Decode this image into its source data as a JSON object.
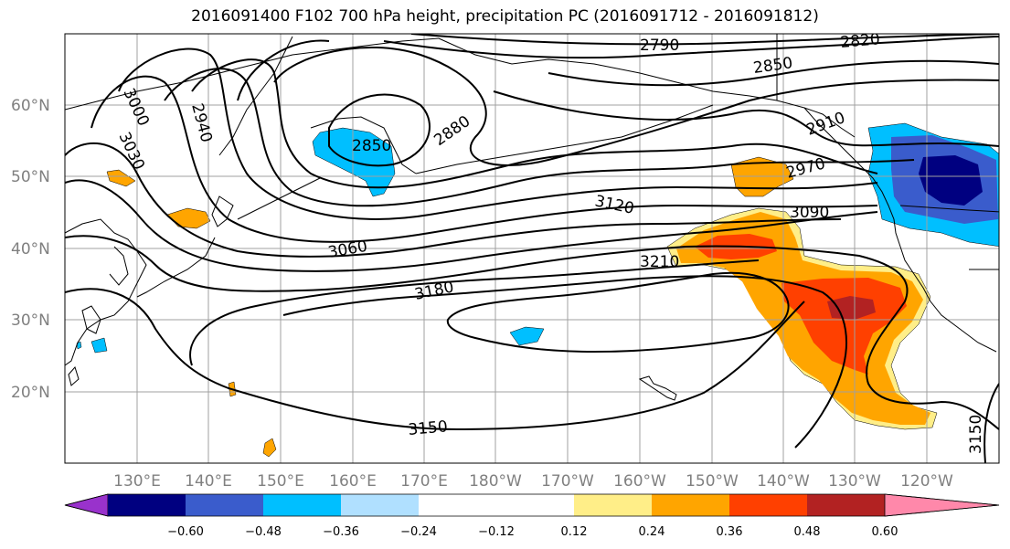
{
  "title": "2016091400 F102 700 hPa height, precipitation PC (2016091712 - 2016091812)",
  "longitude_labels": [
    "130°E",
    "140°E",
    "150°E",
    "160°E",
    "170°E",
    "180°W",
    "170°W",
    "160°W",
    "150°W",
    "140°W",
    "130°W",
    "120°W"
  ],
  "latitude_labels": [
    "20°N",
    "30°N",
    "40°N",
    "50°N",
    "60°N"
  ],
  "contour_labels": [
    {
      "text": "2790",
      "rot": 0
    },
    {
      "text": "2820",
      "rot": -5
    },
    {
      "text": "2850",
      "rot": -8
    },
    {
      "text": "2850",
      "rot": 0
    },
    {
      "text": "2880",
      "rot": -35
    },
    {
      "text": "2910",
      "rot": -20
    },
    {
      "text": "2940",
      "rot": 75
    },
    {
      "text": "2970",
      "rot": -15
    },
    {
      "text": "3000",
      "rot": 65
    },
    {
      "text": "3030",
      "rot": 65
    },
    {
      "text": "3060",
      "rot": -10
    },
    {
      "text": "3090",
      "rot": 0
    },
    {
      "text": "3120",
      "rot": 12
    },
    {
      "text": "3150",
      "rot": -5
    },
    {
      "text": "3150",
      "rot": -90
    },
    {
      "text": "3180",
      "rot": -12
    },
    {
      "text": "3210",
      "rot": 0
    }
  ],
  "colorbar": {
    "tick_labels": [
      "−0.60",
      "−0.48",
      "−0.36",
      "−0.24",
      "−0.12",
      "0.12",
      "0.24",
      "0.36",
      "0.48",
      "0.60"
    ],
    "colors": [
      "#9932cc",
      "#000080",
      "#3a5ccc",
      "#00bfff",
      "#b0e0ff",
      "#ffffff",
      "#ffee88",
      "#ffa500",
      "#ff4000",
      "#b22222",
      "#ff88aa"
    ]
  },
  "colors": {
    "contour": "#000000",
    "coast": "#000000",
    "grid": "#a0a0a0"
  }
}
